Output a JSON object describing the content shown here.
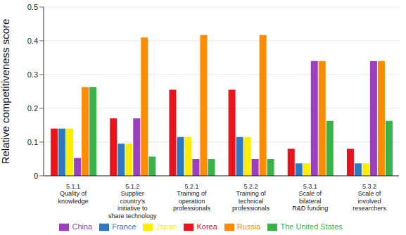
{
  "chart_data": {
    "type": "bar",
    "y_label": "Relative competitiveness score",
    "categories": [
      "5.1.1\nQuality of\nknowledge",
      "5.1.2\nSupplier\ncountry's\ninitiative to\nshare technology",
      "5.2.1\nTraining of\noperation\nprofessionals",
      "5.2.2\nTraining of\ntechnical\nprofessionals",
      "5.3.1\nScale of\nbilateral\nR&D funding",
      "5.3.2\nScale of\ninvolved\nresearchers"
    ],
    "series": [
      {
        "name": "Korea",
        "color": "#e8141e",
        "values": [
          0.14,
          0.17,
          0.255,
          0.255,
          0.08,
          0.08
        ]
      },
      {
        "name": "France",
        "color": "#2e78c0",
        "values": [
          0.14,
          0.095,
          0.115,
          0.115,
          0.037,
          0.037
        ]
      },
      {
        "name": "Japan",
        "color": "#ffee00",
        "values": [
          0.14,
          0.095,
          0.115,
          0.115,
          0.037,
          0.037
        ]
      },
      {
        "name": "China",
        "color": "#9b3fbf",
        "values": [
          0.053,
          0.17,
          0.05,
          0.05,
          0.34,
          0.34
        ]
      },
      {
        "name": "Russia",
        "color": "#ff8c00",
        "values": [
          0.263,
          0.41,
          0.417,
          0.417,
          0.34,
          0.34
        ]
      },
      {
        "name": "The United States",
        "color": "#3cb34a",
        "values": [
          0.263,
          0.057,
          0.05,
          0.05,
          0.163,
          0.163
        ]
      }
    ],
    "ylim": [
      0,
      0.5
    ],
    "yticks": [
      0,
      0.1,
      0.2,
      0.3,
      0.4,
      0.5
    ],
    "grid": true,
    "legend": "bottom"
  }
}
